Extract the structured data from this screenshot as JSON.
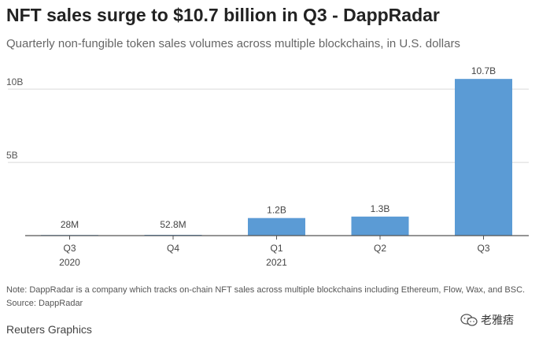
{
  "header": {
    "title": "NFT sales surge to $10.7 billion in Q3 - DappRadar",
    "subtitle": "Quarterly non-fungible token sales volumes across multiple blockchains, in U.S. dollars"
  },
  "chart_data": {
    "type": "bar",
    "categories": [
      "Q3 2020",
      "Q4 2020",
      "Q1 2021",
      "Q2 2021",
      "Q3 2021"
    ],
    "tick_labels": [
      {
        "line1": "Q3",
        "line2": "2020"
      },
      {
        "line1": "Q4",
        "line2": ""
      },
      {
        "line1": "Q1",
        "line2": "2021"
      },
      {
        "line1": "Q2",
        "line2": ""
      },
      {
        "line1": "Q3",
        "line2": ""
      }
    ],
    "values": [
      0.028,
      0.0528,
      1.2,
      1.3,
      10.7
    ],
    "data_labels": [
      "28M",
      "52.8M",
      "1.2B",
      "1.3B",
      "10.7B"
    ],
    "ylim": [
      0,
      11.3
    ],
    "yticks": [
      {
        "value": 5,
        "label": "5B"
      },
      {
        "value": 10,
        "label": "10B"
      }
    ],
    "grid": true,
    "bar_color": "#5b9bd5"
  },
  "footer": {
    "note": "Note: DappRadar is a company which tracks on-chain NFT sales across multiple blockchains including Ethereum, Flow, Wax, and BSC.",
    "source": "Source: DappRadar",
    "credit": "Reuters Graphics",
    "watermark": "老雅痞"
  }
}
